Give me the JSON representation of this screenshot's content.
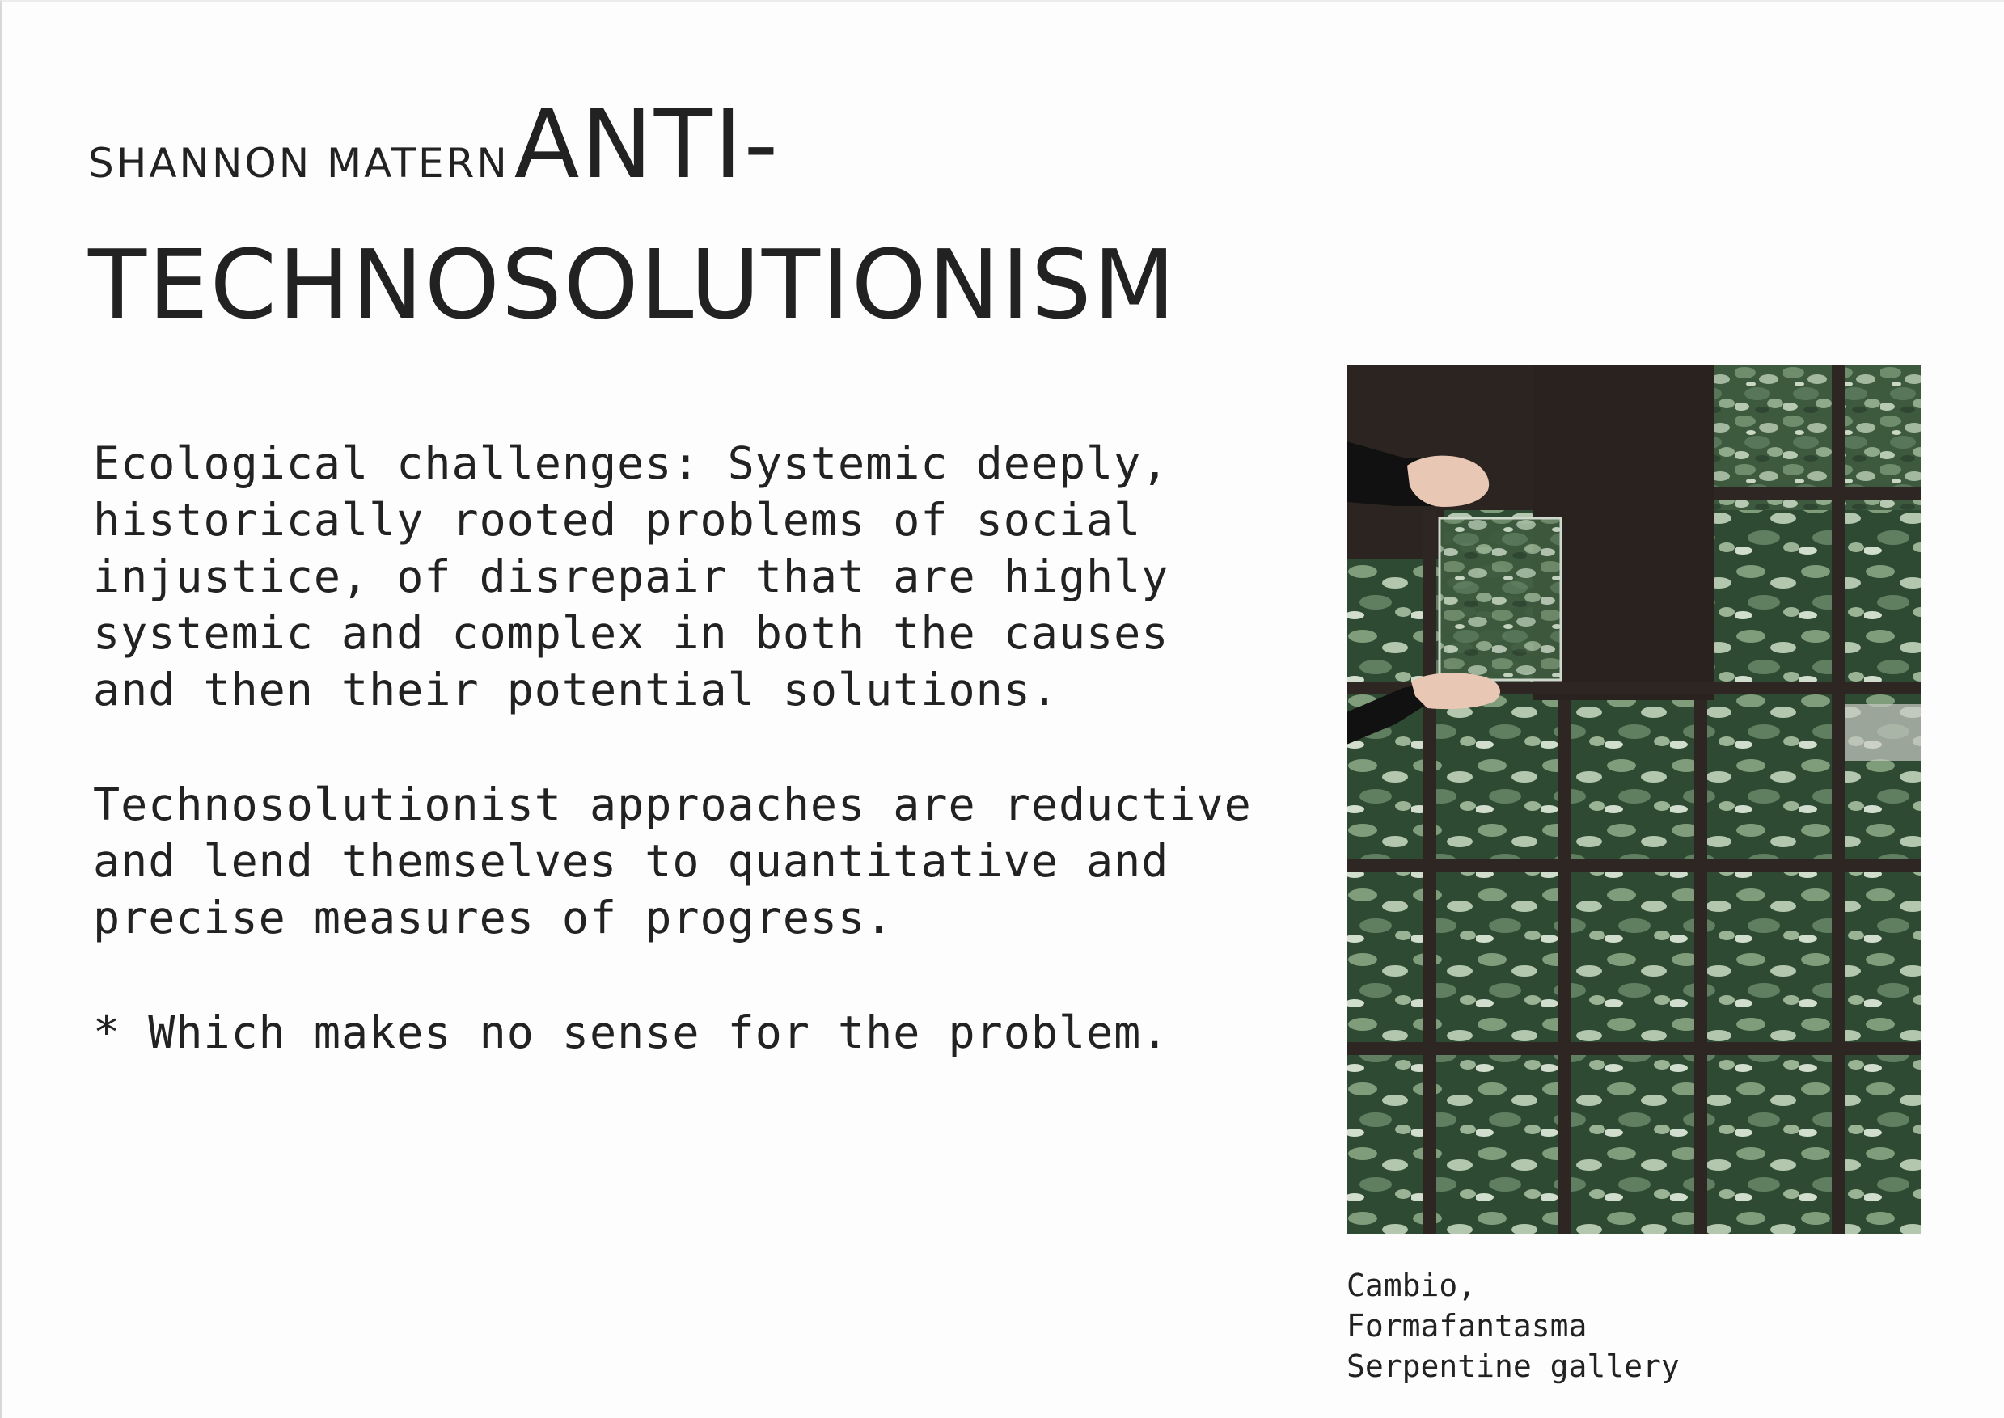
{
  "slide": {
    "author": "SHANNON MATERN",
    "title_line1": "ANTI-",
    "title_line2": "TECHNOSOLUTIONISM"
  },
  "body": {
    "paragraph1": "Ecological challenges: Systemic deeply, historically rooted problems of social injustice, of disrepair that are highly systemic and complex in both the causes and then their potential solutions.",
    "paragraph2": "Technosolutionist approaches are reductive and lend themselves to quantitative and precise measures of progress.",
    "paragraph3": "* Which makes no sense for the problem."
  },
  "figure": {
    "subject": "grid of forest-canopy tiles on dark earth with hands placing a tile",
    "colors": {
      "earth": "#2b2420",
      "grid": "#2e2622",
      "foliage_dark": "#3d5a3e",
      "foliage_light": "#9fb59a",
      "skin": "#e8c7b4",
      "sleeve": "#111111"
    }
  },
  "caption": {
    "line1": "Cambio,",
    "line2": "Formafantasma",
    "line3": "Serpentine gallery"
  }
}
